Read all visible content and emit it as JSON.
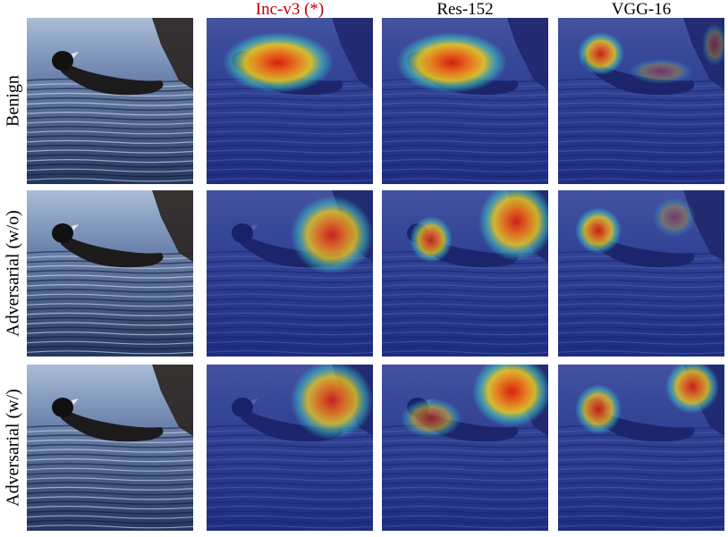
{
  "columns": [
    {
      "label": "",
      "kind": "image"
    },
    {
      "label": "Inc-v3 (*)",
      "kind": "heatmap",
      "highlight": true,
      "highlight_color": "#c00000"
    },
    {
      "label": "Res-152",
      "kind": "heatmap",
      "highlight": false
    },
    {
      "label": "VGG-16",
      "kind": "heatmap",
      "highlight": false
    }
  ],
  "rows": [
    {
      "label": "Benign"
    },
    {
      "label": "Adversarial (w/o)"
    },
    {
      "label": "Adversarial (w/)"
    }
  ],
  "colors": {
    "water_dark": "#24365e",
    "water_light": "#a9bdd6",
    "bird": "#1d1a1c",
    "heatmap_base": "#1c2a8c",
    "heat_hot": "#d61e10",
    "heat_warm": "#f0d020",
    "heat_mid": "#3cc8c8"
  }
}
